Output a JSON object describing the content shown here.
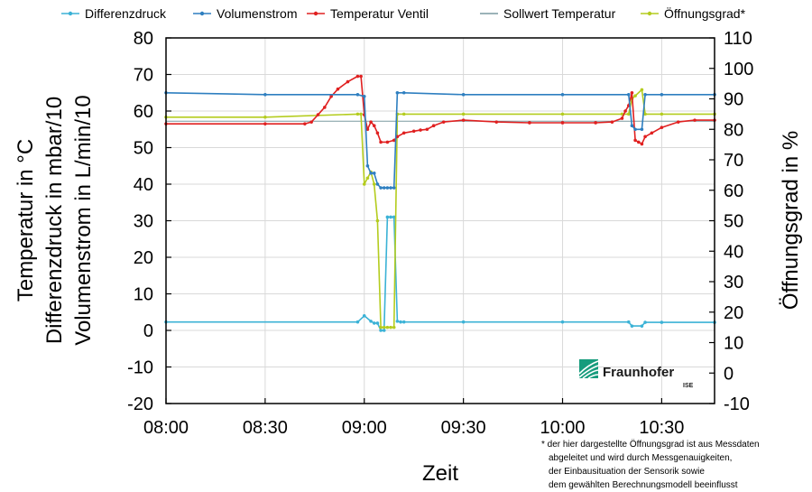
{
  "chart_data": {
    "type": "line",
    "title": "",
    "xlabel": "Zeit",
    "ylabel_left": [
      "Temperatur in °C",
      "Differenzdruck in mbar/10",
      "Volumenstrom in L/min/10"
    ],
    "ylabel_right": "Öffnungsgrad in %",
    "x_ticks": [
      "08:00",
      "08:30",
      "09:00",
      "09:30",
      "10:00",
      "10:30"
    ],
    "xlim": [
      "08:00",
      "10:46"
    ],
    "ylim_left": [
      -20,
      80
    ],
    "ylim_right": [
      -10,
      110
    ],
    "y_ticks_left": [
      -20,
      -10,
      0,
      10,
      20,
      30,
      40,
      50,
      60,
      70,
      80
    ],
    "y_ticks_right": [
      -10,
      0,
      10,
      20,
      30,
      40,
      50,
      60,
      70,
      80,
      90,
      100,
      110
    ],
    "grid": true,
    "legend_position": "top",
    "series": [
      {
        "name": "Differenzdruck",
        "axis": "left",
        "color": "#3bb2d6",
        "marker": "dot",
        "x": [
          "08:00",
          "08:58",
          "09:00",
          "09:02",
          "09:03",
          "09:04",
          "09:05",
          "09:06",
          "09:07",
          "09:08",
          "09:09",
          "09:10",
          "09:11",
          "09:12",
          "09:30",
          "10:00",
          "10:20",
          "10:21",
          "10:24",
          "10:25",
          "10:30",
          "10:46"
        ],
        "y": [
          2.3,
          2.3,
          4,
          2.5,
          2,
          2,
          0,
          0,
          31,
          31,
          31,
          2.5,
          2.3,
          2.3,
          2.3,
          2.3,
          2.3,
          1.2,
          1.2,
          2.2,
          2.2,
          2.2
        ]
      },
      {
        "name": "Volumenstrom",
        "axis": "left",
        "color": "#2e7fc0",
        "marker": "dot",
        "x": [
          "08:00",
          "08:30",
          "08:58",
          "09:00",
          "09:01",
          "09:02",
          "09:03",
          "09:04",
          "09:05",
          "09:06",
          "09:07",
          "09:08",
          "09:09",
          "09:10",
          "09:12",
          "09:30",
          "10:00",
          "10:20",
          "10:21",
          "10:22",
          "10:24",
          "10:25",
          "10:30",
          "10:46"
        ],
        "y": [
          65,
          64.5,
          64.5,
          64,
          45,
          43,
          43,
          40,
          39,
          39,
          39,
          39,
          39,
          65,
          65,
          64.5,
          64.5,
          64.5,
          56,
          55,
          55,
          64.5,
          64.5,
          64.5
        ]
      },
      {
        "name": "Temperatur Ventil",
        "axis": "left",
        "color": "#e02020",
        "marker": "dot",
        "x": [
          "08:00",
          "08:30",
          "08:42",
          "08:44",
          "08:46",
          "08:48",
          "08:50",
          "08:52",
          "08:55",
          "08:58",
          "08:59",
          "09:00",
          "09:01",
          "09:02",
          "09:03",
          "09:04",
          "09:05",
          "09:07",
          "09:09",
          "09:10",
          "09:12",
          "09:15",
          "09:17",
          "09:19",
          "09:21",
          "09:24",
          "09:30",
          "09:40",
          "09:50",
          "10:00",
          "10:10",
          "10:15",
          "10:18",
          "10:19",
          "10:20",
          "10:21",
          "10:22",
          "10:23",
          "10:24",
          "10:25",
          "10:27",
          "10:30",
          "10:35",
          "10:40",
          "10:46"
        ],
        "y": [
          56.5,
          56.5,
          56.5,
          57,
          59,
          61,
          64,
          66,
          68,
          69.5,
          69.5,
          59,
          55,
          57,
          56,
          54,
          51.5,
          51.5,
          52,
          53,
          54,
          54.5,
          54.8,
          55,
          56,
          57,
          57.5,
          57,
          56.8,
          56.8,
          56.8,
          57,
          58,
          60,
          61.5,
          65,
          52,
          51.5,
          51,
          53,
          54,
          55.5,
          57,
          57.5,
          57.5
        ]
      },
      {
        "name": "Sollwert Temperatur",
        "axis": "left",
        "color": "#7a9aa0",
        "marker": "none",
        "x": [
          "08:00",
          "10:46"
        ],
        "y": [
          57.2,
          57.2
        ]
      },
      {
        "name": "Öffnungsgrad*",
        "axis": "right",
        "color": "#b4cc1e",
        "marker": "dot",
        "x": [
          "08:00",
          "08:30",
          "08:58",
          "08:59",
          "09:00",
          "09:01",
          "09:02",
          "09:03",
          "09:04",
          "09:05",
          "09:06",
          "09:07",
          "09:08",
          "09:09",
          "09:10",
          "09:12",
          "09:30",
          "10:00",
          "10:18",
          "10:20",
          "10:21",
          "10:22",
          "10:24",
          "10:25",
          "10:30",
          "10:46"
        ],
        "y": [
          84,
          84,
          85,
          85,
          62,
          64,
          66,
          62,
          50,
          15,
          15,
          15,
          15,
          15,
          85,
          85,
          85,
          85,
          85,
          85,
          90,
          91,
          93,
          85,
          85,
          85
        ]
      }
    ],
    "annotations": [
      "* der hier dargestellte Öffnungsgrad ist aus Messdaten",
      "abgeleitet und wird durch Messgenauigkeiten,",
      "der Einbausituation der Sensorik sowie",
      "dem gewählten Berechnungsmodell beeinflusst"
    ]
  },
  "logo": {
    "name": "Fraunhofer",
    "sub": "ISE"
  }
}
